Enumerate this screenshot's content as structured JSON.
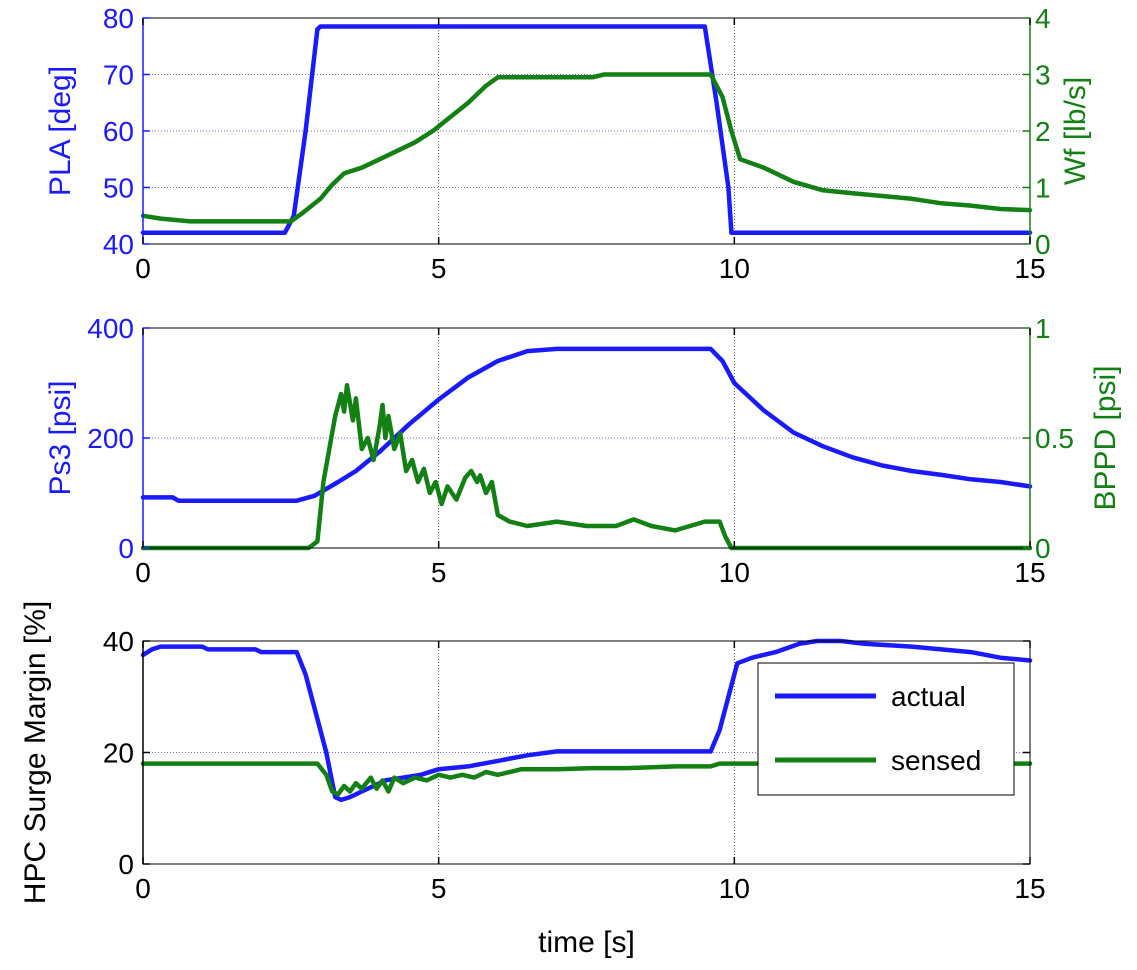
{
  "colors": {
    "blue": "#1a1aff",
    "green": "#138013",
    "black": "#000000",
    "grid": "#3b3bd9"
  },
  "chart_data": [
    {
      "type": "line",
      "xlabel": "",
      "x_ticks": [
        "0",
        "5",
        "10",
        "15"
      ],
      "xlim": [
        0,
        15
      ],
      "left_axis": {
        "label": "PLA [deg]",
        "ylim": [
          40,
          80
        ],
        "ticks": [
          "40",
          "50",
          "60",
          "70",
          "80"
        ],
        "color": "blue"
      },
      "right_axis": {
        "label": "Wf [lb/s]",
        "ylim": [
          0,
          4
        ],
        "ticks": [
          "0",
          "1",
          "2",
          "3",
          "4"
        ],
        "color": "green"
      },
      "grid": "horizontal-left",
      "series": [
        {
          "axis": "left",
          "color": "blue",
          "points": [
            [
              0,
              42
            ],
            [
              2.4,
              42
            ],
            [
              2.55,
              45
            ],
            [
              2.75,
              60
            ],
            [
              2.95,
              78
            ],
            [
              3.0,
              78.5
            ],
            [
              9.5,
              78.5
            ],
            [
              9.7,
              65
            ],
            [
              9.9,
              50
            ],
            [
              9.95,
              42
            ],
            [
              15,
              42
            ]
          ]
        },
        {
          "axis": "right",
          "color": "green",
          "points": [
            [
              0,
              0.5
            ],
            [
              0.3,
              0.45
            ],
            [
              0.8,
              0.4
            ],
            [
              2.5,
              0.4
            ],
            [
              2.7,
              0.55
            ],
            [
              3.0,
              0.8
            ],
            [
              3.2,
              1.05
            ],
            [
              3.4,
              1.25
            ],
            [
              3.7,
              1.35
            ],
            [
              4.0,
              1.5
            ],
            [
              4.3,
              1.65
            ],
            [
              4.6,
              1.8
            ],
            [
              4.9,
              2.0
            ],
            [
              5.2,
              2.25
            ],
            [
              5.5,
              2.5
            ],
            [
              5.8,
              2.8
            ],
            [
              6.0,
              2.95
            ],
            [
              7.6,
              2.95
            ],
            [
              7.8,
              3.0
            ],
            [
              9.6,
              3.0
            ],
            [
              9.8,
              2.6
            ],
            [
              9.95,
              2.0
            ],
            [
              10.1,
              1.5
            ],
            [
              10.5,
              1.35
            ],
            [
              11,
              1.1
            ],
            [
              11.5,
              0.95
            ],
            [
              12,
              0.9
            ],
            [
              12.5,
              0.85
            ],
            [
              13,
              0.8
            ],
            [
              13.5,
              0.72
            ],
            [
              14,
              0.68
            ],
            [
              14.5,
              0.62
            ],
            [
              15,
              0.6
            ]
          ]
        }
      ]
    },
    {
      "type": "line",
      "xlabel": "",
      "x_ticks": [
        "0",
        "5",
        "10",
        "15"
      ],
      "xlim": [
        0,
        15
      ],
      "left_axis": {
        "label": "Ps3 [psi]",
        "ylim": [
          0,
          400
        ],
        "ticks": [
          "0",
          "200",
          "400"
        ],
        "color": "blue"
      },
      "right_axis": {
        "label": "BPPD [psi]",
        "ylim": [
          0,
          1
        ],
        "ticks": [
          "0",
          "0.5",
          "1"
        ],
        "color": "green"
      },
      "grid": "horizontal-left",
      "series": [
        {
          "axis": "left",
          "color": "blue",
          "points": [
            [
              0,
              92
            ],
            [
              0.5,
              92
            ],
            [
              0.6,
              86
            ],
            [
              2.6,
              86
            ],
            [
              2.9,
              95
            ],
            [
              3.3,
              120
            ],
            [
              3.6,
              140
            ],
            [
              4.0,
              175
            ],
            [
              4.5,
              225
            ],
            [
              5.0,
              270
            ],
            [
              5.5,
              310
            ],
            [
              6.0,
              340
            ],
            [
              6.5,
              358
            ],
            [
              7.0,
              362
            ],
            [
              9.6,
              362
            ],
            [
              9.8,
              340
            ],
            [
              10.0,
              300
            ],
            [
              10.5,
              250
            ],
            [
              11,
              210
            ],
            [
              11.5,
              185
            ],
            [
              12,
              165
            ],
            [
              12.5,
              150
            ],
            [
              13,
              140
            ],
            [
              13.5,
              133
            ],
            [
              14,
              125
            ],
            [
              14.5,
              120
            ],
            [
              15,
              112
            ]
          ]
        },
        {
          "axis": "right",
          "color": "green",
          "points": [
            [
              0,
              0
            ],
            [
              2.8,
              0
            ],
            [
              2.95,
              0.03
            ],
            [
              3.05,
              0.3
            ],
            [
              3.15,
              0.45
            ],
            [
              3.25,
              0.6
            ],
            [
              3.35,
              0.7
            ],
            [
              3.4,
              0.62
            ],
            [
              3.45,
              0.74
            ],
            [
              3.55,
              0.58
            ],
            [
              3.6,
              0.68
            ],
            [
              3.7,
              0.45
            ],
            [
              3.8,
              0.5
            ],
            [
              3.9,
              0.4
            ],
            [
              4.0,
              0.55
            ],
            [
              4.05,
              0.65
            ],
            [
              4.1,
              0.5
            ],
            [
              4.15,
              0.6
            ],
            [
              4.25,
              0.45
            ],
            [
              4.35,
              0.52
            ],
            [
              4.45,
              0.35
            ],
            [
              4.55,
              0.4
            ],
            [
              4.65,
              0.3
            ],
            [
              4.75,
              0.36
            ],
            [
              4.85,
              0.25
            ],
            [
              4.95,
              0.3
            ],
            [
              5.05,
              0.2
            ],
            [
              5.15,
              0.28
            ],
            [
              5.3,
              0.22
            ],
            [
              5.45,
              0.32
            ],
            [
              5.55,
              0.35
            ],
            [
              5.65,
              0.3
            ],
            [
              5.7,
              0.33
            ],
            [
              5.8,
              0.25
            ],
            [
              5.9,
              0.3
            ],
            [
              6.0,
              0.15
            ],
            [
              6.2,
              0.12
            ],
            [
              6.5,
              0.1
            ],
            [
              7.0,
              0.12
            ],
            [
              7.5,
              0.1
            ],
            [
              8.0,
              0.1
            ],
            [
              8.3,
              0.13
            ],
            [
              8.6,
              0.1
            ],
            [
              9.0,
              0.08
            ],
            [
              9.5,
              0.12
            ],
            [
              9.75,
              0.12
            ],
            [
              9.85,
              0.05
            ],
            [
              9.95,
              0
            ],
            [
              15,
              0
            ]
          ]
        }
      ]
    },
    {
      "type": "line",
      "xlabel": "time [s]",
      "x_ticks": [
        "0",
        "5",
        "10",
        "15"
      ],
      "xlim": [
        0,
        15
      ],
      "left_axis": {
        "label": "HPC Surge Margin [%]",
        "ylim": [
          0,
          40
        ],
        "ticks": [
          "0",
          "20",
          "40"
        ],
        "color": "black"
      },
      "grid": "horizontal-left",
      "legend": {
        "position": "right",
        "entries": [
          {
            "label": "actual",
            "color": "blue"
          },
          {
            "label": "sensed",
            "color": "green"
          }
        ]
      },
      "series": [
        {
          "name": "actual",
          "axis": "left",
          "color": "blue",
          "points": [
            [
              0,
              37.5
            ],
            [
              0.15,
              38.5
            ],
            [
              0.3,
              39
            ],
            [
              1.0,
              39
            ],
            [
              1.1,
              38.5
            ],
            [
              1.9,
              38.5
            ],
            [
              2.0,
              38
            ],
            [
              2.6,
              38
            ],
            [
              2.75,
              34
            ],
            [
              2.95,
              26
            ],
            [
              3.1,
              20
            ],
            [
              3.25,
              12
            ],
            [
              3.35,
              11.5
            ],
            [
              3.5,
              12
            ],
            [
              3.7,
              13
            ],
            [
              3.9,
              14
            ],
            [
              4.1,
              15
            ],
            [
              4.4,
              15.5
            ],
            [
              4.7,
              16
            ],
            [
              5.0,
              17
            ],
            [
              5.5,
              17.5
            ],
            [
              6.0,
              18.5
            ],
            [
              6.5,
              19.5
            ],
            [
              7.0,
              20.2
            ],
            [
              9.6,
              20.2
            ],
            [
              9.75,
              24
            ],
            [
              9.9,
              30
            ],
            [
              10.05,
              36
            ],
            [
              10.3,
              37
            ],
            [
              10.7,
              38
            ],
            [
              11.1,
              39.5
            ],
            [
              11.4,
              40
            ],
            [
              11.8,
              40
            ],
            [
              12.2,
              39.5
            ],
            [
              13,
              39
            ],
            [
              14,
              38
            ],
            [
              14.5,
              37
            ],
            [
              15,
              36.5
            ]
          ]
        },
        {
          "name": "sensed",
          "axis": "left",
          "color": "green",
          "points": [
            [
              0,
              18
            ],
            [
              2.95,
              18
            ],
            [
              3.1,
              16
            ],
            [
              3.2,
              13
            ],
            [
              3.3,
              12.5
            ],
            [
              3.4,
              14
            ],
            [
              3.5,
              13
            ],
            [
              3.6,
              14.5
            ],
            [
              3.7,
              13.5
            ],
            [
              3.85,
              15.5
            ],
            [
              3.95,
              13.5
            ],
            [
              4.05,
              15
            ],
            [
              4.15,
              13
            ],
            [
              4.25,
              15.5
            ],
            [
              4.4,
              14.5
            ],
            [
              4.6,
              15.5
            ],
            [
              4.8,
              15
            ],
            [
              5.0,
              16
            ],
            [
              5.2,
              15.5
            ],
            [
              5.4,
              16
            ],
            [
              5.6,
              15.5
            ],
            [
              5.8,
              16.5
            ],
            [
              6.0,
              16
            ],
            [
              6.4,
              17
            ],
            [
              7.0,
              17
            ],
            [
              7.6,
              17.2
            ],
            [
              8.2,
              17.2
            ],
            [
              9.0,
              17.5
            ],
            [
              9.6,
              17.5
            ],
            [
              9.75,
              18
            ],
            [
              15,
              18
            ]
          ]
        }
      ]
    }
  ]
}
